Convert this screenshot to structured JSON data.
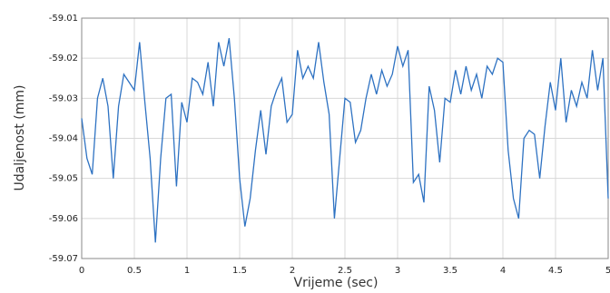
{
  "chart_data": {
    "type": "line",
    "x_label": "Vrijeme (sec)",
    "y_label": "Udaljenost (mm)",
    "x": [
      0,
      0.05,
      0.1,
      0.15,
      0.2,
      0.25,
      0.3,
      0.35,
      0.4,
      0.45,
      0.5,
      0.55,
      0.6,
      0.65,
      0.7,
      0.75,
      0.8,
      0.85,
      0.9,
      0.95,
      1,
      1.05,
      1.1,
      1.15,
      1.2,
      1.25,
      1.3,
      1.35,
      1.4,
      1.45,
      1.5,
      1.55,
      1.6,
      1.65,
      1.7,
      1.75,
      1.8,
      1.85,
      1.9,
      1.95,
      2,
      2.05,
      2.1,
      2.15,
      2.2,
      2.25,
      2.3,
      2.35,
      2.4,
      2.45,
      2.5,
      2.55,
      2.6,
      2.65,
      2.7,
      2.75,
      2.8,
      2.85,
      2.9,
      2.95,
      3,
      3.05,
      3.1,
      3.15,
      3.2,
      3.25,
      3.3,
      3.35,
      3.4,
      3.45,
      3.5,
      3.55,
      3.6,
      3.65,
      3.7,
      3.75,
      3.8,
      3.85,
      3.9,
      3.95,
      4,
      4.05,
      4.1,
      4.15,
      4.2,
      4.25,
      4.3,
      4.35,
      4.4,
      4.45,
      4.5,
      4.55,
      4.6,
      4.65,
      4.7,
      4.75,
      4.8,
      4.85,
      4.9,
      4.95,
      5
    ],
    "series": [
      {
        "color": "#2e72c2",
        "values": [
          -59.035,
          -59.045,
          -59.049,
          -59.03,
          -59.025,
          -59.032,
          -59.05,
          -59.032,
          -59.024,
          -59.026,
          -59.028,
          -59.016,
          -59.031,
          -59.045,
          -59.066,
          -59.045,
          -59.03,
          -59.029,
          -59.052,
          -59.031,
          -59.036,
          -59.025,
          -59.026,
          -59.029,
          -59.021,
          -59.032,
          -59.016,
          -59.022,
          -59.015,
          -59.03,
          -59.05,
          -59.062,
          -59.055,
          -59.043,
          -59.033,
          -59.044,
          -59.032,
          -59.028,
          -59.025,
          -59.036,
          -59.034,
          -59.018,
          -59.025,
          -59.022,
          -59.025,
          -59.016,
          -59.026,
          -59.034,
          -59.06,
          -59.045,
          -59.03,
          -59.031,
          -59.041,
          -59.038,
          -59.03,
          -59.024,
          -59.029,
          -59.023,
          -59.027,
          -59.024,
          -59.017,
          -59.022,
          -59.018,
          -59.051,
          -59.049,
          -59.056,
          -59.027,
          -59.033,
          -59.046,
          -59.03,
          -59.031,
          -59.023,
          -59.029,
          -59.022,
          -59.028,
          -59.024,
          -59.03,
          -59.022,
          -59.024,
          -59.02,
          -59.021,
          -59.043,
          -59.055,
          -59.06,
          -59.04,
          -59.038,
          -59.039,
          -59.05,
          -59.037,
          -59.026,
          -59.033,
          -59.02,
          -59.036,
          -59.028,
          -59.032,
          -59.026,
          -59.03,
          -59.018,
          -59.028,
          -59.02,
          -59.055
        ]
      }
    ],
    "xlim": [
      0,
      5
    ],
    "ylim": [
      -59.07,
      -59.01
    ],
    "xticks": [
      0,
      0.5,
      1,
      1.5,
      2,
      2.5,
      3,
      3.5,
      4,
      4.5,
      5
    ],
    "yticks": [
      -59.07,
      -59.06,
      -59.05,
      -59.04,
      -59.03,
      -59.02,
      -59.01
    ],
    "grid": true
  }
}
